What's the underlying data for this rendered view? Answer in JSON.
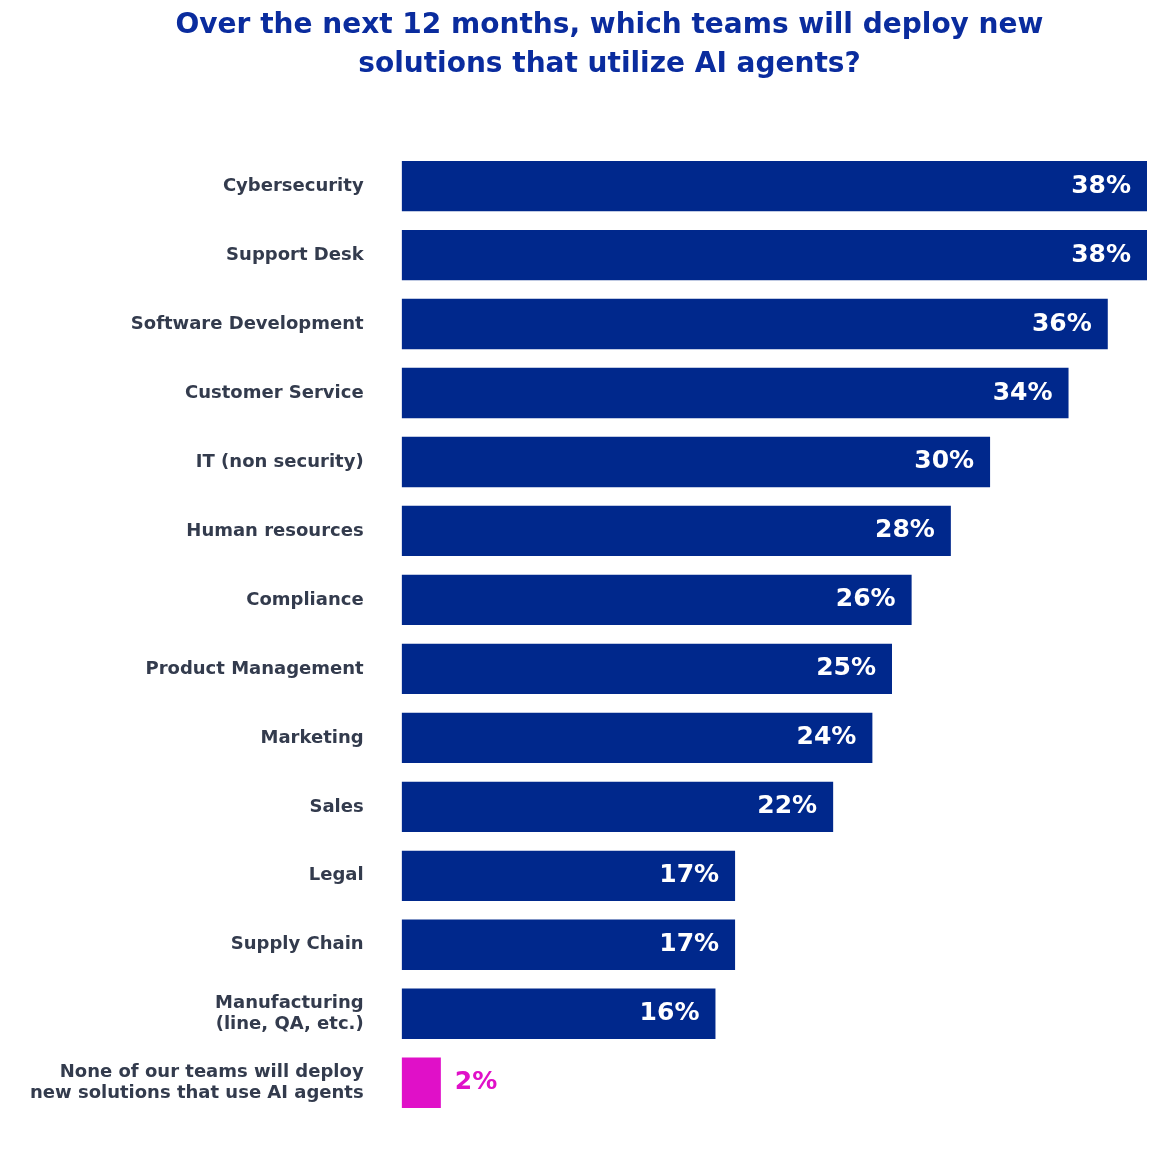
{
  "chart_data": {
    "type": "bar",
    "orientation": "horizontal",
    "title": "Over the next 12 months, which teams will deploy new solutions that utilize AI agents?",
    "categories": [
      "Cybersecurity",
      "Support Desk",
      "Software Development",
      "Customer Service",
      "IT (non security)",
      "Human resources",
      "Compliance",
      "Product Management",
      "Marketing",
      "Sales",
      "Legal",
      "Supply Chain",
      "Manufacturing\n(line, QA, etc.)",
      "None of our teams will deploy\nnew solutions that use AI agents"
    ],
    "values": [
      38,
      38,
      36,
      34,
      30,
      28,
      26,
      25,
      24,
      22,
      17,
      17,
      16,
      2
    ],
    "colors": [
      "#00288c",
      "#00288c",
      "#00288c",
      "#00288c",
      "#00288c",
      "#00288c",
      "#00288c",
      "#00288c",
      "#00288c",
      "#00288c",
      "#00288c",
      "#00288c",
      "#00288c",
      "#e010c8"
    ],
    "value_labels": [
      "38%",
      "38%",
      "36%",
      "34%",
      "30%",
      "28%",
      "26%",
      "25%",
      "24%",
      "22%",
      "17%",
      "17%",
      "16%",
      "2%"
    ],
    "legend": false
  }
}
